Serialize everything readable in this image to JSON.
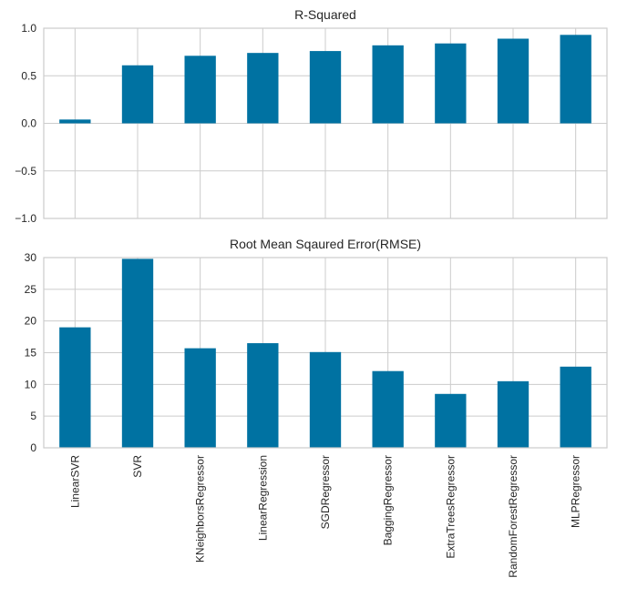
{
  "chart_data": [
    {
      "type": "bar",
      "title": "R-Squared",
      "categories": [
        "LinearSVR",
        "SVR",
        "KNeighborsRegressor",
        "LinearRegression",
        "SGDRegressor",
        "BaggingRegressor",
        "ExtraTreesRegressor",
        "RandomForestRegressor",
        "MLPRegressor"
      ],
      "values": [
        0.04,
        0.61,
        0.71,
        0.74,
        0.76,
        0.82,
        0.84,
        0.89,
        0.93
      ],
      "ylim": [
        -1.0,
        1.0
      ],
      "yticks": [
        1.0,
        0.5,
        0.0,
        -0.5,
        -1.0
      ],
      "ytick_labels": [
        "1.0",
        "0.5",
        "0.0",
        "−0.5",
        "−1.0"
      ],
      "xlabel": "",
      "ylabel": "",
      "grid": true,
      "color": "#0072a2"
    },
    {
      "type": "bar",
      "title": "Root Mean Sqaured Error(RMSE)",
      "categories": [
        "LinearSVR",
        "SVR",
        "KNeighborsRegressor",
        "LinearRegression",
        "SGDRegressor",
        "BaggingRegressor",
        "ExtraTreesRegressor",
        "RandomForestRegressor",
        "MLPRegressor"
      ],
      "values": [
        19.0,
        29.8,
        15.7,
        16.5,
        15.1,
        12.1,
        8.5,
        10.5,
        12.8
      ],
      "ylim": [
        0,
        30
      ],
      "yticks": [
        30,
        25,
        20,
        15,
        10,
        5,
        0
      ],
      "ytick_labels": [
        "30",
        "25",
        "20",
        "15",
        "10",
        "5",
        "0"
      ],
      "xlabel": "",
      "ylabel": "",
      "grid": true,
      "color": "#0072a2"
    }
  ]
}
